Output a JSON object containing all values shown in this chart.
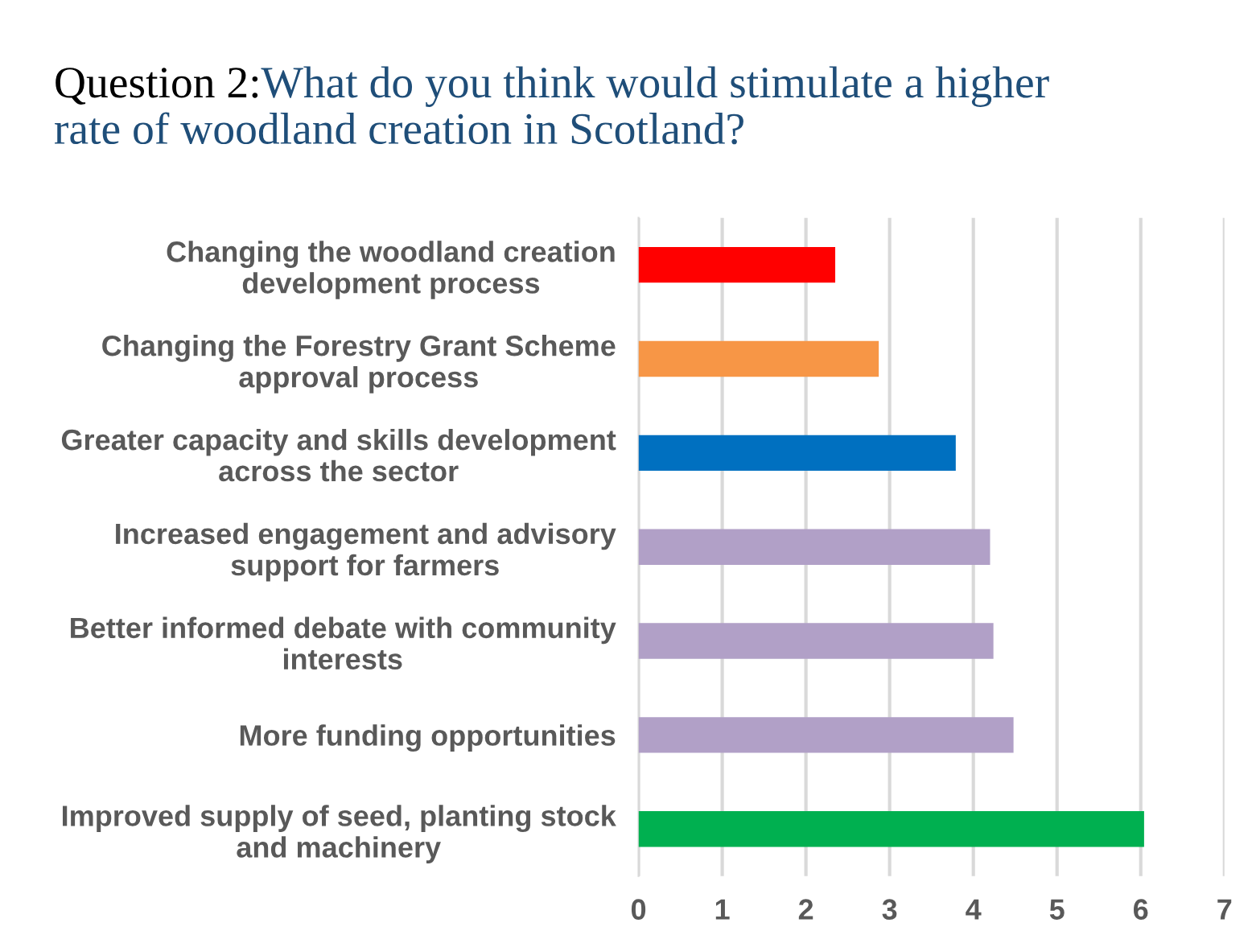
{
  "chart_data": {
    "type": "bar",
    "orientation": "horizontal",
    "title": "Question 2:",
    "subtitle": "What do you think would stimulate a higher\nrate of woodland creation in Scotland?",
    "categories": [
      "Changing the woodland creation\ndevelopment process",
      "Changing the Forestry Grant Scheme\napproval process",
      "Greater capacity and skills development\nacross the sector",
      "Increased engagement and advisory\nsupport for farmers",
      "Better informed debate with community\ninterests",
      "More funding opportunities",
      "Improved supply of seed, planting stock\nand machinery"
    ],
    "values": [
      2.35,
      2.87,
      3.79,
      4.2,
      4.24,
      4.48,
      6.04
    ],
    "colors": [
      "#ff0000",
      "#f79646",
      "#0070c0",
      "#b1a0c7",
      "#b1a0c7",
      "#b1a0c7",
      "#00b050"
    ],
    "xlim": [
      0,
      7
    ],
    "xticks": [
      0,
      1,
      2,
      3,
      4,
      5,
      6,
      7
    ],
    "grid": "x"
  }
}
